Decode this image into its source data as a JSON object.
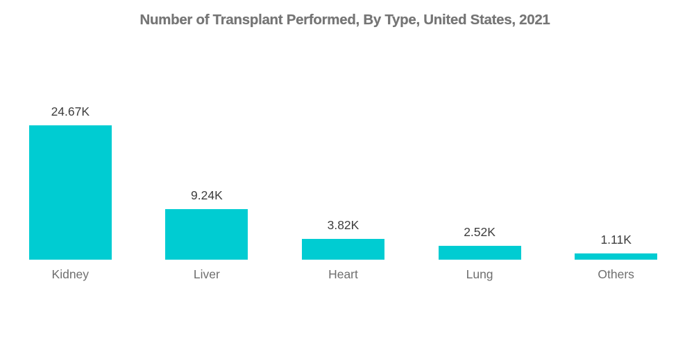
{
  "page": {
    "background_color": "#ffffff"
  },
  "chart_data": {
    "type": "bar",
    "title": "Number of Transplant Performed, By Type, United States, 2021",
    "categories": [
      "Kidney",
      "Liver",
      "Heart",
      "Lung",
      "Others"
    ],
    "values": [
      24.67,
      9.24,
      3.82,
      2.52,
      1.11
    ],
    "value_labels": [
      "24.67K",
      "9.24K",
      "3.82K",
      "2.52K",
      "1.11K"
    ],
    "unit": "K",
    "xlabel": "",
    "ylabel": "",
    "ylim": [
      0,
      24.67
    ],
    "grid": false,
    "legend": "none",
    "data_label_position": "above-bar",
    "bar_color": "#00CCD2",
    "title_color": "#757575",
    "value_label_color": "#3d3d3d",
    "category_label_color": "#6e6e6e"
  }
}
